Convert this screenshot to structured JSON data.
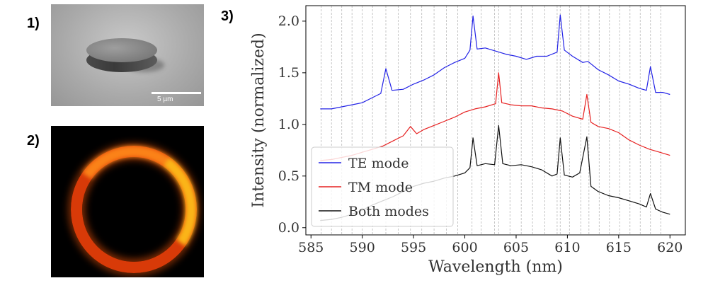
{
  "panels": {
    "label1": "1)",
    "label2": "2)",
    "label3": "3)",
    "scale_bar_text": "5 µm"
  },
  "chart_data": {
    "type": "line",
    "title": "",
    "xlabel": "Wavelength (nm)",
    "ylabel": "Intensity (normalized)",
    "xlim": [
      584.5,
      621.5
    ],
    "ylim": [
      -0.07,
      2.15
    ],
    "xticks": [
      585,
      590,
      595,
      600,
      605,
      610,
      615,
      620
    ],
    "yticks": [
      0.0,
      0.5,
      1.0,
      1.5,
      2.0
    ],
    "ytick_labels": [
      "0.0",
      "0.5",
      "1.0",
      "1.5",
      "2.0"
    ],
    "grid": "vertical lines at resonance wavelengths",
    "grid_lines_x": [
      586,
      587,
      588,
      589,
      590,
      591,
      592.3,
      593.5,
      594.7,
      595.8,
      597,
      598.2,
      599.3,
      600.7,
      601.6,
      602.9,
      603.3,
      604.4,
      605.5,
      606.6,
      607.8,
      609,
      609.3,
      610.2,
      611.3,
      612.1,
      613.1,
      614.1,
      615.1,
      616.1,
      617.1,
      618.1,
      619.1
    ],
    "legend_position": "lower-left",
    "series": [
      {
        "name": "TE mode",
        "color": "#2323e6",
        "x": [
          585.9,
          587,
          588,
          589,
          590,
          591,
          591.8,
          592.3,
          592.9,
          594,
          595,
          596,
          597,
          598,
          599,
          600,
          600.5,
          600.8,
          601.2,
          602,
          603,
          604,
          605,
          606,
          607,
          608,
          609,
          609.3,
          609.7,
          610.5,
          611.5,
          612,
          613,
          614,
          615,
          616,
          617,
          617.7,
          618.1,
          618.6,
          619.3,
          620
        ],
        "y": [
          1.15,
          1.15,
          1.17,
          1.19,
          1.21,
          1.26,
          1.3,
          1.54,
          1.33,
          1.34,
          1.39,
          1.43,
          1.48,
          1.55,
          1.6,
          1.64,
          1.72,
          2.05,
          1.73,
          1.74,
          1.71,
          1.68,
          1.66,
          1.63,
          1.66,
          1.66,
          1.7,
          2.06,
          1.72,
          1.66,
          1.6,
          1.61,
          1.53,
          1.48,
          1.42,
          1.39,
          1.35,
          1.33,
          1.56,
          1.31,
          1.31,
          1.29
        ]
      },
      {
        "name": "TM mode",
        "color": "#e62020",
        "x": [
          585.9,
          587,
          588,
          589,
          590,
          591,
          592,
          593,
          594,
          594.7,
          595.3,
          596,
          597,
          598,
          599,
          600,
          601,
          602,
          603,
          603.3,
          603.6,
          604.5,
          605.5,
          606.5,
          607.5,
          608.5,
          609.5,
          610.5,
          611.5,
          611.9,
          612.3,
          613,
          614,
          615,
          616,
          617,
          618,
          619,
          620
        ],
        "y": [
          0.65,
          0.66,
          0.68,
          0.7,
          0.73,
          0.76,
          0.79,
          0.84,
          0.89,
          0.98,
          0.91,
          0.95,
          0.99,
          1.03,
          1.07,
          1.12,
          1.15,
          1.17,
          1.2,
          1.5,
          1.21,
          1.19,
          1.18,
          1.18,
          1.16,
          1.15,
          1.13,
          1.08,
          1.05,
          1.29,
          1.02,
          0.98,
          0.96,
          0.92,
          0.85,
          0.8,
          0.76,
          0.73,
          0.7
        ]
      },
      {
        "name": "Both modes",
        "color": "#111111",
        "x": [
          585.9,
          587,
          588,
          589,
          590,
          591,
          592,
          593,
          594,
          595,
          596,
          597,
          598,
          599,
          600,
          600.5,
          600.8,
          601.2,
          602,
          602.9,
          603.3,
          603.7,
          604.5,
          605.5,
          606.5,
          607.5,
          608.5,
          609,
          609.3,
          609.7,
          610.5,
          611.2,
          611.9,
          612.3,
          613,
          614,
          615,
          616,
          617,
          617.7,
          618.1,
          618.6,
          619.3,
          620
        ],
        "y": [
          0.07,
          0.08,
          0.1,
          0.13,
          0.17,
          0.22,
          0.26,
          0.3,
          0.35,
          0.4,
          0.43,
          0.45,
          0.48,
          0.5,
          0.53,
          0.58,
          0.87,
          0.6,
          0.62,
          0.61,
          0.99,
          0.62,
          0.6,
          0.61,
          0.59,
          0.56,
          0.5,
          0.52,
          0.87,
          0.51,
          0.49,
          0.53,
          0.88,
          0.4,
          0.35,
          0.31,
          0.29,
          0.26,
          0.23,
          0.2,
          0.33,
          0.18,
          0.15,
          0.13
        ]
      }
    ]
  }
}
